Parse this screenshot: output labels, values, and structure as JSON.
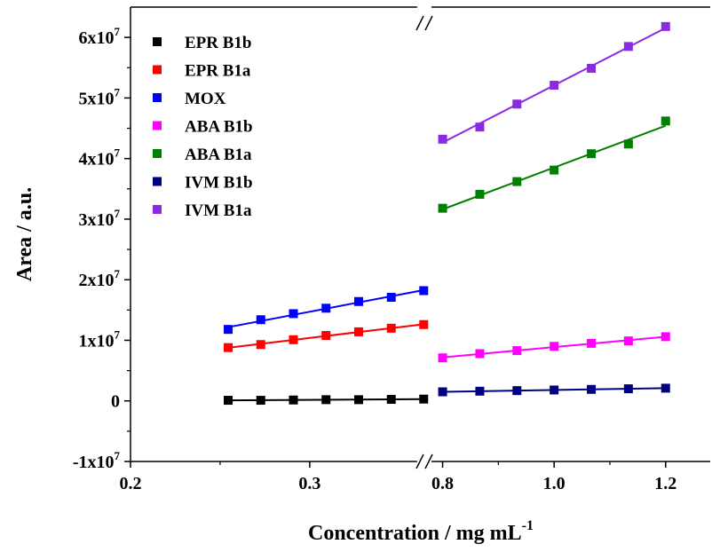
{
  "chart_data": {
    "type": "scatter",
    "xlabel": "Concentration / mg mL",
    "xlabel_superscript": "-1",
    "ylabel": "Area / a.u.",
    "broken_x_axis": true,
    "x_segments": [
      {
        "range": [
          0.2,
          0.36
        ],
        "ticks": [
          {
            "value": 0.2,
            "label": "0.2"
          },
          {
            "value": 0.3,
            "label": "0.3"
          }
        ]
      },
      {
        "range": [
          0.78,
          1.28
        ],
        "ticks": [
          {
            "value": 0.8,
            "label": "0.8"
          },
          {
            "value": 1.0,
            "label": "1.0"
          },
          {
            "value": 1.2,
            "label": "1.2"
          }
        ]
      }
    ],
    "ylim": [
      -10000000,
      65000000
    ],
    "y_ticks": [
      {
        "value": -10000000,
        "mantissa": "-1x10",
        "exp": "7"
      },
      {
        "value": 0,
        "mantissa": "0",
        "exp": ""
      },
      {
        "value": 10000000,
        "mantissa": "1x10",
        "exp": "7"
      },
      {
        "value": 20000000,
        "mantissa": "2x10",
        "exp": "7"
      },
      {
        "value": 30000000,
        "mantissa": "3x10",
        "exp": "7"
      },
      {
        "value": 40000000,
        "mantissa": "4x10",
        "exp": "7"
      },
      {
        "value": 50000000,
        "mantissa": "5x10",
        "exp": "7"
      },
      {
        "value": 60000000,
        "mantissa": "6x10",
        "exp": "7"
      }
    ],
    "legend_position": "top-left",
    "grid": false,
    "series": [
      {
        "name": "EPR B1b",
        "color": "#000000",
        "segment": 0,
        "x": [
          0.2545,
          0.2727,
          0.2909,
          0.3091,
          0.3273,
          0.3455,
          0.3636
        ],
        "y": [
          100000,
          100000,
          150000,
          200000,
          200000,
          250000,
          300000
        ]
      },
      {
        "name": "EPR B1a",
        "color": "#ff0000",
        "segment": 0,
        "x": [
          0.2545,
          0.2727,
          0.2909,
          0.3091,
          0.3273,
          0.3455,
          0.3636
        ],
        "y": [
          8800000,
          9300000,
          10100000,
          10800000,
          11400000,
          12000000,
          12600000
        ]
      },
      {
        "name": "MOX",
        "color": "#0000ff",
        "segment": 0,
        "x": [
          0.2545,
          0.2727,
          0.2909,
          0.3091,
          0.3273,
          0.3455,
          0.3636
        ],
        "y": [
          11800000,
          13400000,
          14400000,
          15300000,
          16400000,
          17100000,
          18200000
        ]
      },
      {
        "name": "ABA B1b",
        "color": "#ff00ff",
        "segment": 1,
        "x": [
          0.8,
          0.8667,
          0.9333,
          1.0,
          1.0667,
          1.1333,
          1.2
        ],
        "y": [
          7100000,
          7800000,
          8300000,
          9000000,
          9500000,
          9900000,
          10600000
        ]
      },
      {
        "name": "ABA B1a",
        "color": "#008000",
        "segment": 1,
        "x": [
          0.8,
          0.8667,
          0.9333,
          1.0,
          1.0667,
          1.1333,
          1.2
        ],
        "y": [
          31800000,
          34100000,
          36200000,
          38100000,
          40800000,
          42400000,
          46200000
        ]
      },
      {
        "name": "IVM B1b",
        "color": "#000080",
        "segment": 1,
        "x": [
          0.8,
          0.8667,
          0.9333,
          1.0,
          1.0667,
          1.1333,
          1.2
        ],
        "y": [
          1500000,
          1600000,
          1700000,
          1800000,
          1900000,
          2000000,
          2100000
        ]
      },
      {
        "name": "IVM B1a",
        "color": "#8a2be2",
        "segment": 1,
        "x": [
          0.8,
          0.8667,
          0.9333,
          1.0,
          1.0667,
          1.1333,
          1.2
        ],
        "y": [
          43200000,
          45200000,
          49000000,
          52100000,
          54900000,
          58500000,
          61800000
        ]
      }
    ]
  }
}
